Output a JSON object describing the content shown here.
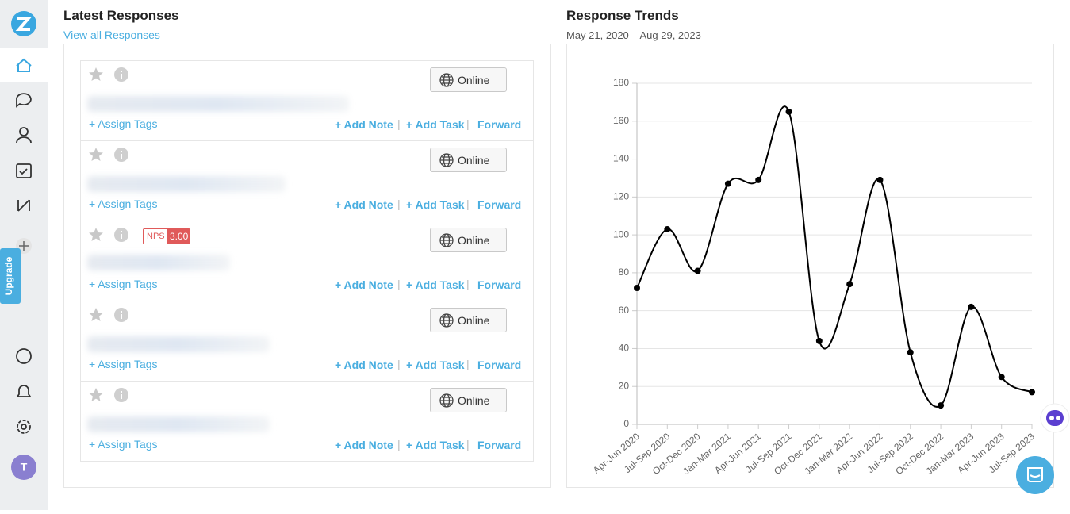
{
  "sidebar": {
    "upgrade": "Upgrade",
    "avatar": "T"
  },
  "responses": {
    "title": "Latest Responses",
    "view_all": "View all Responses",
    "items": [
      {
        "status": "Online",
        "assign": "+ Assign Tags",
        "add_note": "+ Add Note",
        "sep1": "|",
        "add_task": "+ Add Task",
        "sep2": "|",
        "forward": "Forward"
      },
      {
        "status": "Online",
        "assign": "+ Assign Tags",
        "add_note": "+ Add Note",
        "sep1": "|",
        "add_task": "+ Add Task",
        "sep2": "|",
        "forward": "Forward"
      },
      {
        "status": "Online",
        "nps_label": "NPS",
        "nps_score": "3.00",
        "assign": "+ Assign Tags",
        "add_note": "+ Add Note",
        "sep1": "|",
        "add_task": "+ Add Task",
        "sep2": "|",
        "forward": "Forward"
      },
      {
        "status": "Online",
        "assign": "+ Assign Tags",
        "add_note": "+ Add Note",
        "sep1": "|",
        "add_task": "+ Add Task",
        "sep2": "|",
        "forward": "Forward"
      },
      {
        "status": "Online",
        "assign": "+ Assign Tags",
        "add_note": "+ Add Note",
        "sep1": "|",
        "add_task": "+ Add Task",
        "sep2": "|",
        "forward": "Forward"
      }
    ]
  },
  "chart_data": {
    "type": "line",
    "title": "Response Trends",
    "subtitle": "May 21, 2020 – Aug 29, 2023",
    "categories": [
      "Apr-Jun 2020",
      "Jul-Sep 2020",
      "Oct-Dec 2020",
      "Jan-Mar 2021",
      "Apr-Jun 2021",
      "Jul-Sep 2021",
      "Oct-Dec 2021",
      "Jan-Mar 2022",
      "Apr-Jun 2022",
      "Jul-Sep 2022",
      "Oct-Dec 2022",
      "Jan-Mar 2023",
      "Apr-Jun 2023",
      "Jul-Sep 2023"
    ],
    "values": [
      72,
      103,
      81,
      127,
      129,
      165,
      44,
      74,
      129,
      38,
      10,
      62,
      25,
      17
    ],
    "color": "#000000",
    "ylim": [
      0,
      180
    ],
    "yticks": [
      0,
      20,
      40,
      60,
      80,
      100,
      120,
      140,
      160,
      180
    ],
    "grid": true
  }
}
